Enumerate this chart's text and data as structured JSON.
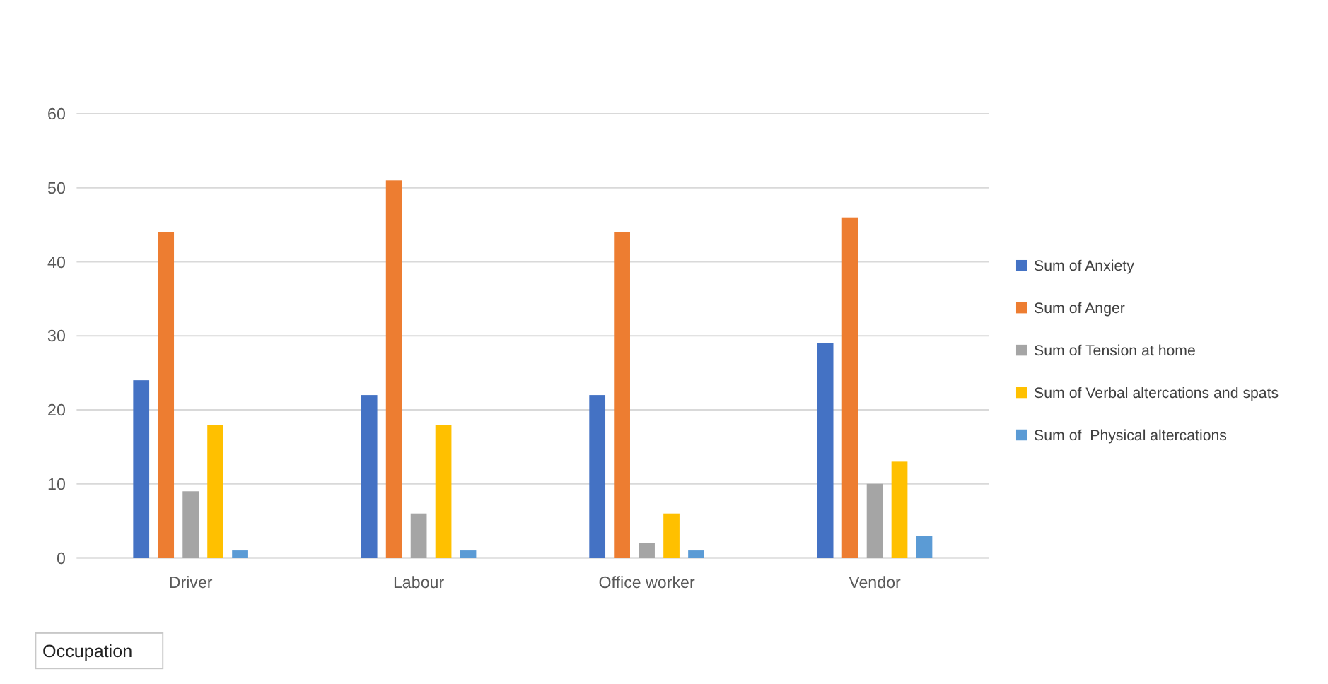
{
  "chart_data": {
    "type": "bar",
    "xlabel": "Occupation",
    "categories": [
      "Driver",
      "Labour",
      "Office worker",
      "Vendor"
    ],
    "series": [
      {
        "name": "Sum of Anxiety",
        "color": "#4472c4",
        "values": [
          24,
          22,
          22,
          29
        ]
      },
      {
        "name": "Sum of Anger",
        "color": "#ed7d31",
        "values": [
          44,
          51,
          44,
          46
        ]
      },
      {
        "name": "Sum of Tension at home",
        "color": "#a5a5a5",
        "values": [
          9,
          6,
          2,
          10
        ]
      },
      {
        "name": "Sum of Verbal altercations and spats",
        "color": "#ffc000",
        "values": [
          18,
          18,
          6,
          13
        ]
      },
      {
        "name": "Sum of  Physical altercations",
        "color": "#5b9bd5",
        "values": [
          1,
          1,
          1,
          3
        ]
      }
    ],
    "ylim": [
      0,
      60
    ],
    "yticks": [
      0,
      10,
      20,
      30,
      40,
      50,
      60
    ],
    "grid": "y",
    "legend": "right"
  }
}
